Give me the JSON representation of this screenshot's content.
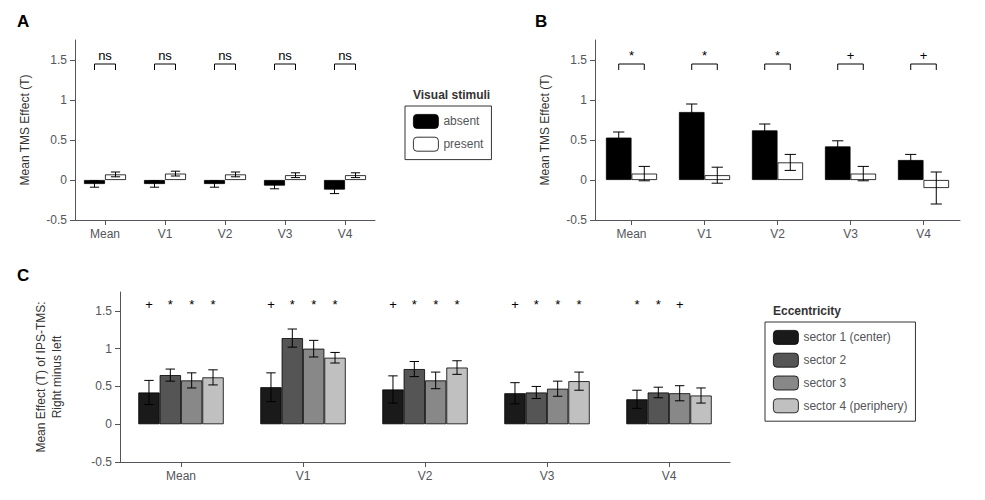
{
  "chart_data": [
    {
      "type": "bar",
      "title": "A",
      "categories": [
        "Mean",
        "V1",
        "V2",
        "V3",
        "V4"
      ],
      "series": [
        {
          "name": "absent",
          "color": "#000000",
          "values": [
            -0.05,
            -0.05,
            -0.05,
            -0.07,
            -0.12
          ],
          "errors": [
            0.04,
            0.04,
            0.04,
            0.04,
            0.05
          ]
        },
        {
          "name": "present",
          "color": "#ffffff",
          "values": [
            0.07,
            0.08,
            0.07,
            0.06,
            0.06
          ],
          "errors": [
            0.03,
            0.03,
            0.03,
            0.03,
            0.03
          ]
        }
      ],
      "ylabel": "Mean TMS Effect (T)",
      "ylim": [
        -0.5,
        1.75
      ],
      "yticks": [
        -0.5,
        0,
        0.5,
        1,
        1.5
      ],
      "grid": false,
      "legend": "right",
      "legend_title": "Visual stimuli",
      "annotations": [
        {
          "text": "ns",
          "category": "Mean",
          "y": 1.45
        },
        {
          "text": "ns",
          "category": "V1",
          "y": 1.45
        },
        {
          "text": "ns",
          "category": "V2",
          "y": 1.45
        },
        {
          "text": "ns",
          "category": "V3",
          "y": 1.45
        },
        {
          "text": "ns",
          "category": "V4",
          "y": 1.45
        }
      ]
    },
    {
      "type": "bar",
      "title": "B",
      "categories": [
        "Mean",
        "V1",
        "V2",
        "V3",
        "V4"
      ],
      "series": [
        {
          "name": "absent",
          "color": "#000000",
          "values": [
            0.53,
            0.85,
            0.62,
            0.42,
            0.25
          ],
          "errors": [
            0.07,
            0.1,
            0.08,
            0.07,
            0.07
          ]
        },
        {
          "name": "present",
          "color": "#ffffff",
          "values": [
            0.08,
            0.06,
            0.22,
            0.08,
            -0.1
          ],
          "errors": [
            0.09,
            0.1,
            0.1,
            0.09,
            0.2
          ]
        }
      ],
      "ylabel": "Mean TMS Effect (T)",
      "ylim": [
        -0.5,
        1.75
      ],
      "yticks": [
        -0.5,
        0,
        0.5,
        1,
        1.5
      ],
      "grid": false,
      "annotations": [
        {
          "text": "*",
          "category": "Mean",
          "y": 1.45
        },
        {
          "text": "*",
          "category": "V1",
          "y": 1.45
        },
        {
          "text": "*",
          "category": "V2",
          "y": 1.45
        },
        {
          "text": "+",
          "category": "V3",
          "y": 1.45
        },
        {
          "text": "+",
          "category": "V4",
          "y": 1.45
        }
      ]
    },
    {
      "type": "bar",
      "title": "C",
      "categories": [
        "Mean",
        "V1",
        "V2",
        "V3",
        "V4"
      ],
      "series": [
        {
          "name": "sector 1 (center)",
          "color": "#1a1a1a",
          "values": [
            0.42,
            0.49,
            0.46,
            0.41,
            0.33
          ],
          "errors": [
            0.16,
            0.19,
            0.18,
            0.14,
            0.12
          ]
        },
        {
          "name": "sector 2",
          "color": "#555555",
          "values": [
            0.65,
            1.14,
            0.73,
            0.42,
            0.42
          ],
          "errors": [
            0.08,
            0.12,
            0.1,
            0.08,
            0.07
          ]
        },
        {
          "name": "sector 3",
          "color": "#888888",
          "values": [
            0.58,
            1.0,
            0.58,
            0.47,
            0.41
          ],
          "errors": [
            0.1,
            0.11,
            0.11,
            0.1,
            0.1
          ]
        },
        {
          "name": "sector 4 (periphery)",
          "color": "#c0c0c0",
          "values": [
            0.62,
            0.88,
            0.75,
            0.57,
            0.38
          ],
          "errors": [
            0.1,
            0.07,
            0.09,
            0.12,
            0.1
          ]
        }
      ],
      "ylabel": "Mean Effect (T) of IPS-TMS:\nRight minus left",
      "ylim": [
        -0.5,
        1.75
      ],
      "yticks": [
        -0.5,
        0,
        0.5,
        1,
        1.5
      ],
      "grid": false,
      "legend": "right",
      "legend_title": "Eccentricity",
      "annotations": [
        {
          "text": "+",
          "category": "Mean",
          "series": "sector 1 (center)",
          "y": 1.5
        },
        {
          "text": "*",
          "category": "Mean",
          "series": "sector 2",
          "y": 1.5
        },
        {
          "text": "*",
          "category": "Mean",
          "series": "sector 3",
          "y": 1.5
        },
        {
          "text": "*",
          "category": "Mean",
          "series": "sector 4 (periphery)",
          "y": 1.5
        },
        {
          "text": "+",
          "category": "V1",
          "series": "sector 1 (center)",
          "y": 1.5
        },
        {
          "text": "*",
          "category": "V1",
          "series": "sector 2",
          "y": 1.5
        },
        {
          "text": "*",
          "category": "V1",
          "series": "sector 3",
          "y": 1.5
        },
        {
          "text": "*",
          "category": "V1",
          "series": "sector 4 (periphery)",
          "y": 1.5
        },
        {
          "text": "+",
          "category": "V2",
          "series": "sector 1 (center)",
          "y": 1.5
        },
        {
          "text": "*",
          "category": "V2",
          "series": "sector 2",
          "y": 1.5
        },
        {
          "text": "*",
          "category": "V2",
          "series": "sector 3",
          "y": 1.5
        },
        {
          "text": "*",
          "category": "V2",
          "series": "sector 4 (periphery)",
          "y": 1.5
        },
        {
          "text": "+",
          "category": "V3",
          "series": "sector 1 (center)",
          "y": 1.5
        },
        {
          "text": "*",
          "category": "V3",
          "series": "sector 2",
          "y": 1.5
        },
        {
          "text": "*",
          "category": "V3",
          "series": "sector 3",
          "y": 1.5
        },
        {
          "text": "*",
          "category": "V3",
          "series": "sector 4 (periphery)",
          "y": 1.5
        },
        {
          "text": "*",
          "category": "V4",
          "series": "sector 1 (center)",
          "y": 1.5
        },
        {
          "text": "*",
          "category": "V4",
          "series": "sector 2",
          "y": 1.5
        },
        {
          "text": "+",
          "category": "V4",
          "series": "sector 3",
          "y": 1.5
        }
      ]
    }
  ]
}
